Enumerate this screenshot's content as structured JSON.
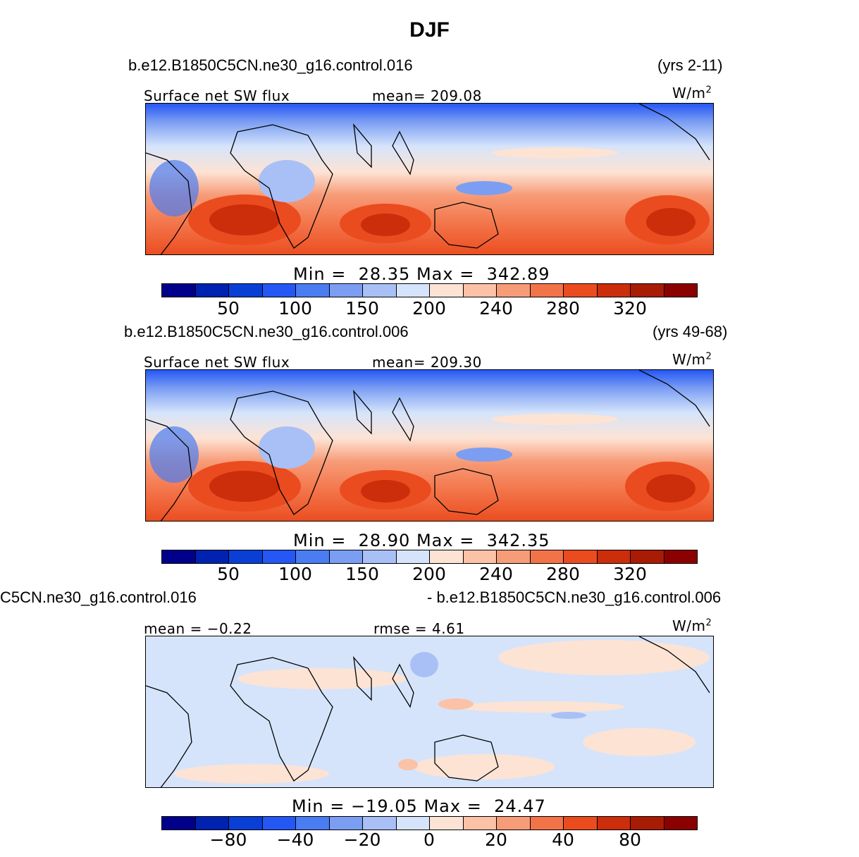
{
  "title": "DJF",
  "panels": [
    {
      "case": "b.e12.B1850C5CN.ne30_g16.control.016",
      "years": "(yrs 2-11)",
      "left_label": "Surface net SW flux",
      "center_label": "mean= 209.08",
      "units_base": "W/m",
      "units_exp": "2",
      "min_label": "Min",
      "min_value": "28.35",
      "max_label": "Max",
      "max_value": "342.89",
      "ticks": [
        "50",
        "100",
        "150",
        "200",
        "240",
        "280",
        "320"
      ]
    },
    {
      "case": "b.e12.B1850C5CN.ne30_g16.control.006",
      "years": "(yrs 49-68)",
      "left_label": "Surface net SW flux",
      "center_label": "mean= 209.30",
      "units_base": "W/m",
      "units_exp": "2",
      "min_label": "Min",
      "min_value": "28.90",
      "max_label": "Max",
      "max_value": "342.35",
      "ticks": [
        "50",
        "100",
        "150",
        "200",
        "240",
        "280",
        "320"
      ]
    },
    {
      "case_left": "C5CN.ne30_g16.control.016",
      "case_right": "- b.e12.B1850C5CN.ne30_g16.control.006",
      "left_label": "mean = −0.22",
      "center_label": "rmse = 4.61",
      "units_base": "W/m",
      "units_exp": "2",
      "min_label": "Min",
      "min_value": "−19.05",
      "max_label": "Max",
      "max_value": "24.47",
      "ticks": [
        "−80",
        "−40",
        "−20",
        "0",
        "20",
        "40",
        "80"
      ]
    }
  ],
  "colorbar_colors": [
    "#00008b",
    "#0022b0",
    "#0a3fd6",
    "#2557f5",
    "#4a7cf2",
    "#7b9ef3",
    "#a9c0f6",
    "#d5e4fb",
    "#fde3d4",
    "#fbc2a7",
    "#f79c78",
    "#f37348",
    "#ea4c1f",
    "#cc2d0b",
    "#a81b05",
    "#8b0000"
  ]
}
